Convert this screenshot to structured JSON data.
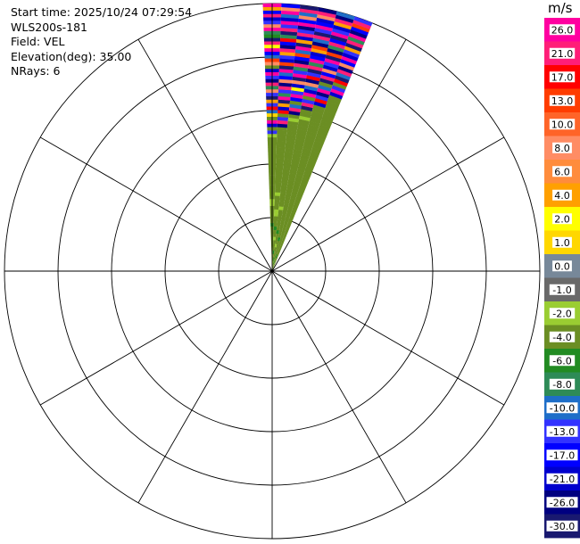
{
  "info": {
    "start_time": "Start time: 2025/10/24 07:29:54",
    "station": "WLS200s-181",
    "field": "Field: VEL",
    "elevation": "Elevation(deg): 35.00",
    "nrays": "NRays: 6"
  },
  "chart_data": {
    "type": "polar-ppi",
    "field": "VEL",
    "units": "m/s",
    "rings": 5,
    "spokes_deg": [
      0,
      30,
      60,
      90,
      120,
      150,
      180,
      210,
      240,
      270,
      300,
      330
    ],
    "rays": [
      {
        "azimuth_deg": 0.0,
        "gates": [
          "-4.0",
          "-4.0",
          "-4.0",
          "-2.0",
          "-2.0",
          "-4.0",
          "-4.0",
          "-4.0",
          "-4.0",
          "-4.0",
          "-4.0",
          "-4.0",
          "-4.0",
          "-6.0",
          "-4.0",
          "-4.0",
          "-4.0",
          "-4.0",
          "-4.0",
          "-2.0",
          "-2.0",
          "-4.0",
          "-4.0",
          "-4.0",
          "-4.0",
          "-4.0",
          "-4.0",
          "-4.0",
          "-4.0",
          "-4.0",
          "-4.0",
          "-4.0",
          "-4.0",
          "-4.0",
          "-4.0",
          "-4.0",
          "-4.0",
          "-4.0",
          "-4.0",
          "-2.0",
          "-13.0",
          "-4.0",
          "-21.0",
          "26.0",
          "-4.0",
          "1.0",
          "-10.0",
          "17.0",
          "-13.0",
          "4.0",
          "-30.0",
          "-13.0",
          "8.0",
          "-8.0",
          "21.0",
          "-26.0",
          "-13.0",
          "26.0",
          "-21.0",
          "-4.0",
          "8.0",
          "13.0",
          "-10.0",
          "-17.0",
          "26.0",
          "2.0",
          "21.0",
          "-30.0",
          "-6.0",
          "-8.0",
          "26.0",
          "8.0",
          "-13.0",
          "-21.0",
          "21.0",
          "-17.0",
          "4.0",
          "26.0"
        ]
      },
      {
        "azimuth_deg": 4.0,
        "gates": [
          "-4.0",
          "-4.0",
          "-2.0",
          "-4.0",
          "-4.0",
          "-6.0",
          "-4.0",
          "-4.0",
          "-4.0",
          "-2.0",
          "-4.0",
          "-4.0",
          "-6.0",
          "-4.0",
          "-4.0",
          "-4.0",
          "-2.0",
          "-2.0",
          "-4.0",
          "-4.0",
          "-4.0",
          "-4.0",
          "-2.0",
          "-4.0",
          "-4.0",
          "-4.0",
          "-4.0",
          "-4.0",
          "-4.0",
          "-4.0",
          "-4.0",
          "-4.0",
          "-4.0",
          "-4.0",
          "-4.0",
          "-4.0",
          "-4.0",
          "-4.0",
          "-4.0",
          "-4.0",
          "-4.0",
          "-4.0",
          "-26.0",
          "21.0",
          "-13.0",
          "-4.0",
          "17.0",
          "-21.0",
          "4.0",
          "-30.0",
          "26.0",
          "-8.0",
          "-13.0",
          "21.0",
          "-26.0",
          "8.0",
          "-17.0",
          "-10.0",
          "26.0",
          "-30.0",
          "13.0",
          "-21.0",
          "-13.0",
          "4.0",
          "21.0",
          "-26.0",
          "-17.0",
          "17.0",
          "-8.0",
          "-30.0",
          "21.0",
          "-13.0",
          "26.0",
          "-21.0",
          "-10.0",
          "26.0",
          "8.0",
          "-17.0"
        ]
      },
      {
        "azimuth_deg": 8.0,
        "gates": [
          "-6.0",
          "-4.0",
          "-4.0",
          "-6.0",
          "-4.0",
          "-4.0",
          "-4.0",
          "-2.0",
          "-4.0",
          "-4.0",
          "-4.0",
          "-6.0",
          "-4.0",
          "-4.0",
          "-4.0",
          "-4.0",
          "-4.0",
          "-4.0",
          "-2.0",
          "-4.0",
          "-4.0",
          "-4.0",
          "-4.0",
          "-4.0",
          "-4.0",
          "-4.0",
          "-4.0",
          "-4.0",
          "-4.0",
          "-4.0",
          "-4.0",
          "-4.0",
          "-4.0",
          "-4.0",
          "-4.0",
          "-4.0",
          "-4.0",
          "-4.0",
          "-4.0",
          "-4.0",
          "-4.0",
          "-4.0",
          "-4.0",
          "-4.0",
          "-2.0",
          "-4.0",
          "-26.0",
          "21.0",
          "-10.0",
          "-4.0",
          "-17.0",
          "26.0",
          "-13.0",
          "2.0",
          "-21.0",
          "8.0",
          "-30.0",
          "26.0",
          "-13.0",
          "-8.0",
          "21.0",
          "-26.0",
          "-17.0",
          "13.0",
          "-10.0",
          "26.0",
          "-30.0",
          "4.0",
          "-21.0",
          "21.0",
          "-13.0",
          "-26.0",
          "26.0",
          "-17.0",
          "8.0",
          "-10.0",
          "21.0",
          "-30.0"
        ]
      },
      {
        "azimuth_deg": 12.0,
        "gates": [
          "-4.0",
          "-4.0",
          "-6.0",
          "-4.0",
          "-4.0",
          "-4.0",
          "-4.0",
          "-4.0",
          "-4.0",
          "-6.0",
          "-4.0",
          "-4.0",
          "-4.0",
          "-4.0",
          "-4.0",
          "-4.0",
          "-4.0",
          "-4.0",
          "-4.0",
          "-4.0",
          "-4.0",
          "-4.0",
          "-4.0",
          "-4.0",
          "-4.0",
          "-4.0",
          "-4.0",
          "-4.0",
          "-4.0",
          "-4.0",
          "-4.0",
          "-4.0",
          "-4.0",
          "-4.0",
          "-4.0",
          "-4.0",
          "-4.0",
          "-4.0",
          "-4.0",
          "-4.0",
          "-4.0",
          "-4.0",
          "-4.0",
          "-4.0",
          "-4.0",
          "-2.0",
          "-4.0",
          "-4.0",
          "-30.0",
          "21.0",
          "-13.0",
          "-4.0",
          "26.0",
          "-21.0",
          "-10.0",
          "8.0",
          "-26.0",
          "17.0",
          "-13.0",
          "-30.0",
          "21.0",
          "-8.0",
          "26.0",
          "-17.0",
          "-21.0",
          "4.0",
          "13.0",
          "-26.0",
          "-10.0",
          "21.0",
          "-30.0",
          "-13.0",
          "26.0",
          "-17.0",
          "-21.0",
          "8.0",
          "21.0",
          "-26.0"
        ]
      },
      {
        "azimuth_deg": 16.0,
        "gates": [
          "-4.0",
          "-4.0",
          "-4.0",
          "-4.0",
          "-6.0",
          "-4.0",
          "-4.0",
          "-4.0",
          "-4.0",
          "-4.0",
          "-4.0",
          "-4.0",
          "-4.0",
          "-4.0",
          "-4.0",
          "-4.0",
          "-4.0",
          "-4.0",
          "-4.0",
          "-4.0",
          "-4.0",
          "-4.0",
          "-4.0",
          "-4.0",
          "-4.0",
          "-4.0",
          "-4.0",
          "-4.0",
          "-4.0",
          "-4.0",
          "-4.0",
          "-4.0",
          "-4.0",
          "-4.0",
          "-4.0",
          "-4.0",
          "-4.0",
          "-4.0",
          "-4.0",
          "-4.0",
          "-4.0",
          "-4.0",
          "-4.0",
          "-4.0",
          "-4.0",
          "-4.0",
          "-4.0",
          "-4.0",
          "-4.0",
          "-4.0",
          "-21.0",
          "17.0",
          "-13.0",
          "-26.0",
          "26.0",
          "-10.0",
          "-4.0",
          "-30.0",
          "21.0",
          "-17.0",
          "8.0",
          "-21.0",
          "-13.0",
          "26.0",
          "-30.0",
          "13.0",
          "-26.0",
          "-8.0",
          "21.0",
          "-17.0",
          "-30.0",
          "26.0",
          "-13.0",
          "-21.0",
          "4.0",
          "21.0",
          "-26.0",
          "-10.0"
        ]
      },
      {
        "azimuth_deg": 20.0,
        "gates": [
          "-4.0",
          "-4.0",
          "-4.0",
          "-4.0",
          "-4.0",
          "-4.0",
          "-4.0",
          "-4.0",
          "-4.0",
          "-4.0",
          "-4.0",
          "-4.0",
          "-4.0",
          "-4.0",
          "-4.0",
          "-4.0",
          "-4.0",
          "-4.0",
          "-4.0",
          "-4.0",
          "-4.0",
          "-4.0",
          "-4.0",
          "-4.0",
          "-4.0",
          "-4.0",
          "-4.0",
          "-4.0",
          "-4.0",
          "-4.0",
          "-4.0",
          "-4.0",
          "-4.0",
          "-4.0",
          "-4.0",
          "-4.0",
          "-4.0",
          "-4.0",
          "-4.0",
          "-4.0",
          "-4.0",
          "-4.0",
          "-4.0",
          "-4.0",
          "-4.0",
          "-4.0",
          "-4.0",
          "-4.0",
          "-4.0",
          "-4.0",
          "-4.0",
          "-4.0",
          "-4.0",
          "-4.0",
          "-21.0",
          "26.0",
          "-13.0",
          "-4.0",
          "17.0",
          "-30.0",
          "-10.0",
          "21.0",
          "-26.0",
          "8.0",
          "-17.0",
          "26.0",
          "-21.0",
          "-13.0",
          "4.0",
          "-30.0",
          "21.0",
          "-8.0",
          "26.0",
          "-26.0",
          "-17.0",
          "13.0",
          "21.0",
          "-13.0"
        ]
      }
    ],
    "colorbar": {
      "labels": [
        "26.0",
        "21.0",
        "17.0",
        "13.0",
        "10.0",
        "8.0",
        "6.0",
        "4.0",
        "2.0",
        "1.0",
        "0.0",
        "-1.0",
        "-2.0",
        "-4.0",
        "-6.0",
        "-8.0",
        "-10.0",
        "-13.0",
        "-17.0",
        "-21.0",
        "-26.0",
        "-30.0"
      ],
      "colors": [
        "#ff00a0",
        "#ff1e78",
        "#ff0000",
        "#ff3c00",
        "#ff6428",
        "#ff8c64",
        "#ff8c3c",
        "#ffa000",
        "#ffff00",
        "#ffd700",
        "#778899",
        "#696969",
        "#9acd32",
        "#6b8e23",
        "#228b22",
        "#2e8b57",
        "#1e6ec8",
        "#3232ff",
        "#0000ff",
        "#0000cd",
        "#000080",
        "#191970"
      ]
    }
  },
  "colors": {
    "grid": "#000000",
    "background": "#ffffff"
  }
}
